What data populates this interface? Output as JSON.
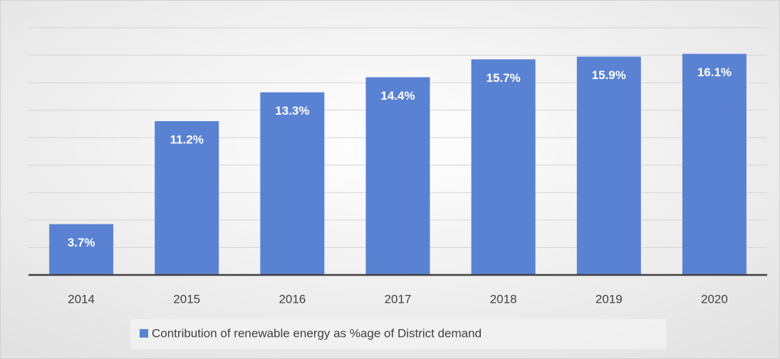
{
  "chart_data": {
    "type": "bar",
    "categories": [
      "2014",
      "2015",
      "2016",
      "2017",
      "2018",
      "2019",
      "2020"
    ],
    "series": [
      {
        "name": "Contribution of renewable energy as %age of District demand",
        "color": "#5a82d2",
        "values": [
          3.7,
          11.2,
          13.3,
          14.4,
          15.7,
          15.9,
          16.1
        ],
        "value_labels": [
          "3.7%",
          "11.2%",
          "13.3%",
          "14.4%",
          "15.7%",
          "15.9%",
          "16.1%"
        ]
      }
    ],
    "ylim": [
      0,
      18
    ],
    "yticks": [
      0,
      2,
      4,
      6,
      8,
      10,
      12,
      14,
      16,
      18
    ],
    "grid": true,
    "legend": "bottom"
  }
}
